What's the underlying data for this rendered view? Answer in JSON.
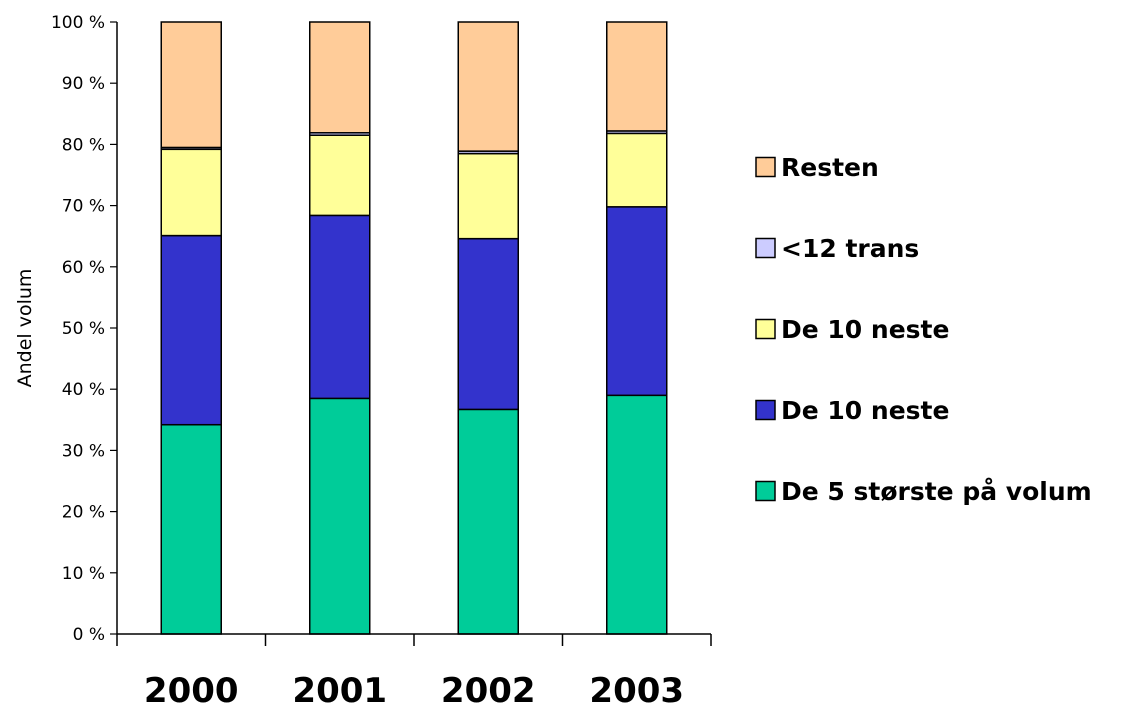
{
  "chart_data": {
    "type": "bar",
    "stacked": true,
    "normalized_percent": true,
    "categories": [
      "2000",
      "2001",
      "2002",
      "2003"
    ],
    "series": [
      {
        "name": "De 5 største på volum",
        "color": "#00CC99",
        "values": [
          34.2,
          38.5,
          36.7,
          39.0
        ]
      },
      {
        "name": "De 10 neste",
        "color": "#3333CC",
        "values": [
          30.9,
          29.9,
          27.9,
          30.8
        ]
      },
      {
        "name": "De 10 neste",
        "color": "#FFFF99",
        "values": [
          14.1,
          13.1,
          13.9,
          12.0
        ]
      },
      {
        "name": "<12 trans",
        "color": "#CCCCFF",
        "values": [
          0.3,
          0.4,
          0.4,
          0.4
        ]
      },
      {
        "name": "Resten",
        "color": "#FFCC99",
        "values": [
          20.5,
          18.1,
          21.1,
          17.8
        ]
      }
    ],
    "legend_order": [
      4,
      3,
      2,
      1,
      0
    ],
    "legend_position": "right",
    "ylabel": "Andel volum",
    "xlabel": "",
    "ylim": [
      0,
      100
    ],
    "yticks": [
      "0 %",
      "10 %",
      "20 %",
      "30 %",
      "40 %",
      "50 %",
      "60 %",
      "70 %",
      "80 %",
      "90 %",
      "100 %"
    ],
    "grid": false
  }
}
